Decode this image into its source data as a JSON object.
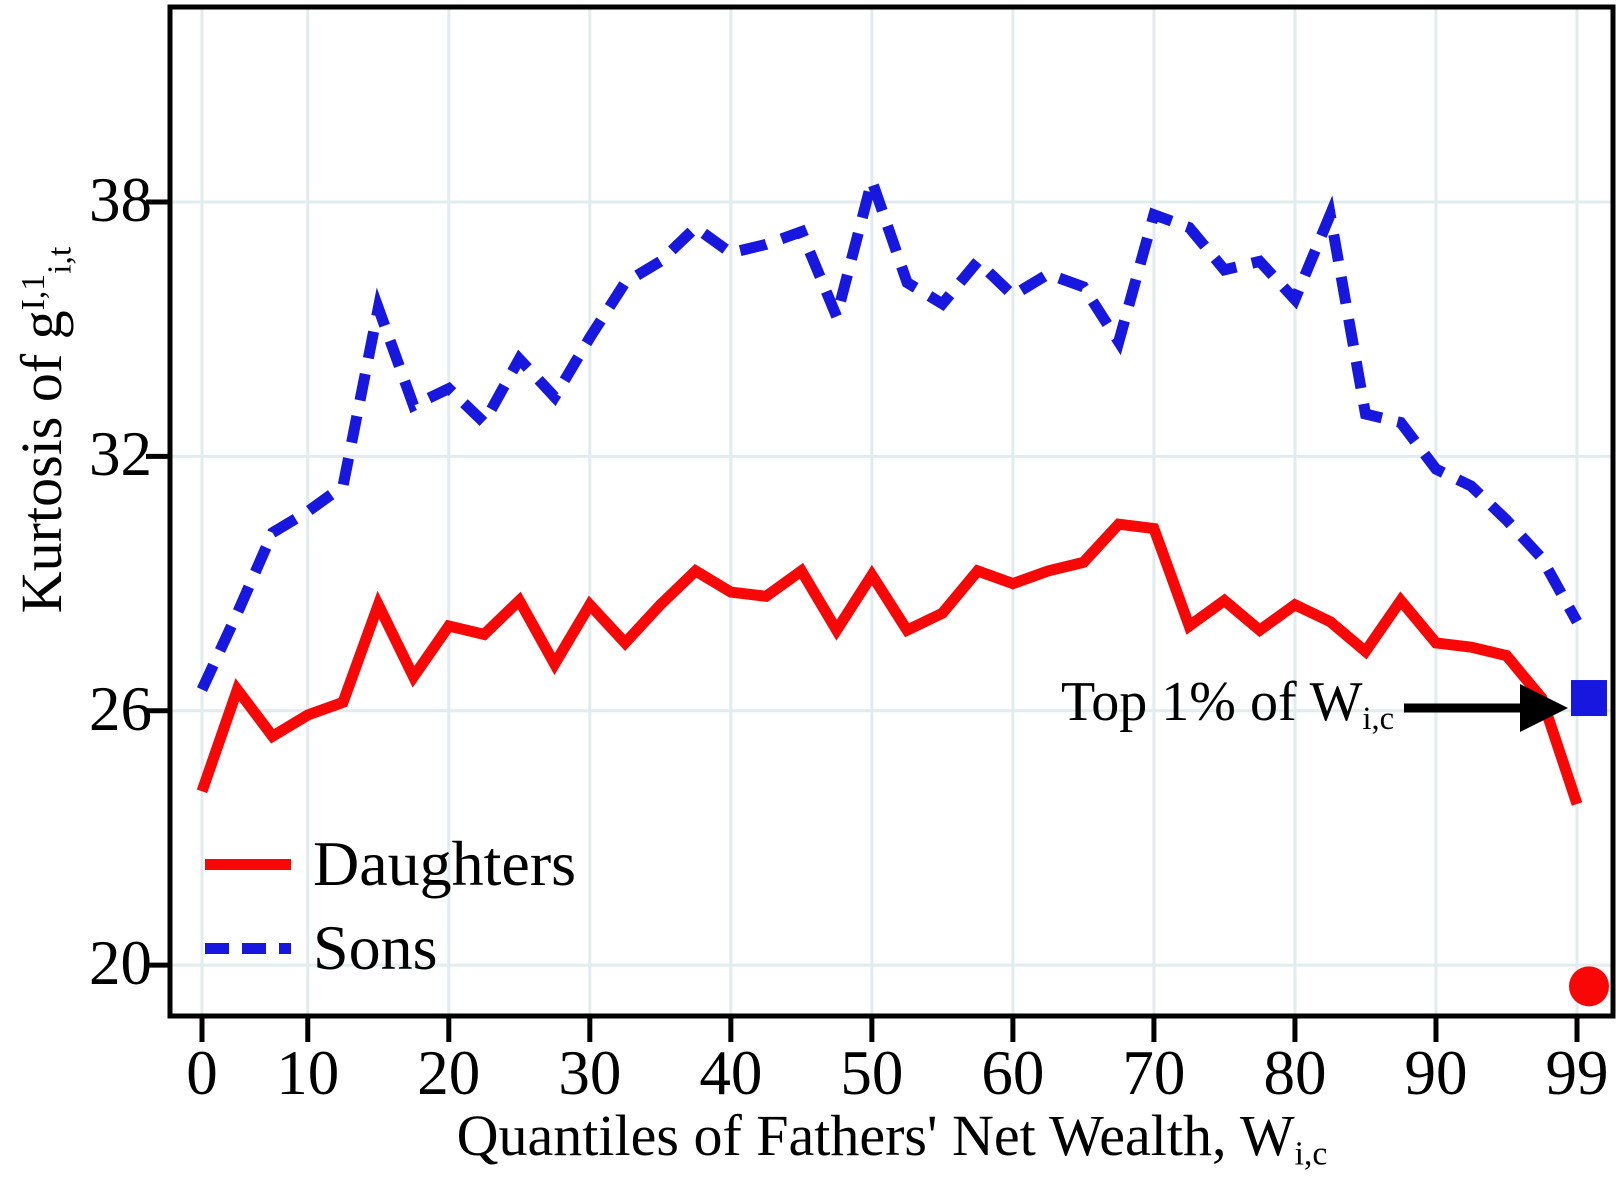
{
  "y_axis": {
    "title_prefix": "Kurtosis of g",
    "title_sup": "I,1",
    "title_sub": "i,t",
    "tick_labels": [
      "38",
      "32",
      "26",
      "20"
    ],
    "tick_values": [
      38,
      32,
      26,
      20
    ]
  },
  "x_axis": {
    "title_prefix": "Quantiles of Fathers' Net Wealth, W",
    "title_sub": "i,c",
    "tick_labels": [
      "0",
      "10",
      "20",
      "30",
      "40",
      "50",
      "60",
      "70",
      "80",
      "90",
      "99"
    ],
    "tick_indices": [
      0,
      3,
      7,
      11,
      15,
      19,
      23,
      27,
      31,
      35,
      39
    ]
  },
  "legend": {
    "position": "bottom-left",
    "items": [
      {
        "label": "Daughters",
        "style": "solid"
      },
      {
        "label": "Sons",
        "style": "dashed"
      }
    ]
  },
  "annotation": {
    "prefix": "Top 1% of W",
    "sub": "i,c"
  },
  "colors": {
    "daughters": "#F90606",
    "sons": "#1717E0",
    "grid": "#E2EBED",
    "axis": "#000000",
    "arrow": "#000000"
  },
  "chart_data": {
    "type": "line",
    "title": "",
    "xlabel": "Quantiles of Fathers' Net Wealth, W_i,c",
    "ylabel": "Kurtosis of g^I,1_i,t",
    "ylim": [
      18.8,
      42.6
    ],
    "grid": true,
    "legend_position": "bottom-left",
    "n_points": 40,
    "x_tick_labels": [
      "0",
      "10",
      "20",
      "30",
      "40",
      "50",
      "60",
      "70",
      "80",
      "90",
      "99"
    ],
    "x_tick_indices": [
      0,
      3,
      7,
      11,
      15,
      19,
      23,
      27,
      31,
      35,
      39
    ],
    "series": [
      {
        "name": "Daughters",
        "style": "solid",
        "color": "#F90606",
        "values": [
          24.1,
          26.5,
          25.4,
          25.9,
          26.2,
          28.5,
          26.8,
          28.0,
          27.8,
          28.6,
          27.1,
          28.5,
          27.6,
          28.5,
          29.3,
          28.8,
          28.7,
          29.3,
          27.9,
          29.2,
          27.9,
          28.3,
          29.3,
          29.0,
          29.3,
          29.5,
          30.4,
          30.3,
          28.0,
          28.6,
          27.9,
          28.5,
          28.1,
          27.4,
          28.6,
          27.6,
          27.5,
          27.3,
          26.3,
          23.8
        ]
      },
      {
        "name": "Sons",
        "style": "dashed",
        "color": "#1717E0",
        "values": [
          26.5,
          28.3,
          30.2,
          30.7,
          31.3,
          35.5,
          33.2,
          33.6,
          32.8,
          34.3,
          33.4,
          34.8,
          36.1,
          36.6,
          37.4,
          36.8,
          37.0,
          37.3,
          35.3,
          38.5,
          36.1,
          35.6,
          36.6,
          35.8,
          36.3,
          36.0,
          34.7,
          37.7,
          37.4,
          36.4,
          36.6,
          35.7,
          37.7,
          33.0,
          32.8,
          31.7,
          31.3,
          30.5,
          29.6,
          28.1
        ]
      }
    ],
    "end_markers": [
      {
        "series": "Sons",
        "shape": "square",
        "value": 26.3,
        "x_index": 39.34,
        "label": "Top 1% of W_i,c"
      },
      {
        "series": "Daughters",
        "shape": "circle",
        "value": 19.5,
        "x_index": 39.34,
        "label": "Top 1% of W_i,c"
      }
    ]
  }
}
